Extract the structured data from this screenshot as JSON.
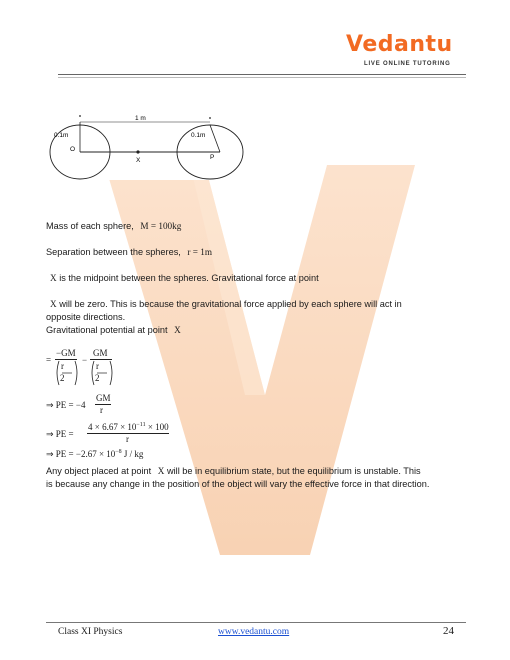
{
  "logo": {
    "name": "Vedantu",
    "tagline": "LIVE ONLINE TUTORING"
  },
  "figure": {
    "distance_label": "1 m",
    "radius_left": "0.1m",
    "radius_right": "0.1m",
    "point_o": "O",
    "point_x": "X",
    "point_p": "P"
  },
  "body": {
    "mass_text": "Mass of each sphere,",
    "mass_eq": "M = 100kg",
    "sep_text": "Separation between the spheres,",
    "sep_eq": "r = 1m",
    "line3_x": "X",
    "line3_rest": " is the midpoint between the spheres. Gravitational force at point",
    "line4_x": "X",
    "line4_rest": " will be zero. This is because the gravitational force applied by each sphere will act in",
    "line5": "opposite directions.",
    "line6": "Gravitational potential at point",
    "line6_x": "X",
    "eq1_num_left": "−GM",
    "eq1_num_right": "GM",
    "eq1_den": "r",
    "eq1_den2": "2",
    "eq2_lhs": "⇒ PE = −4",
    "eq2_num": "GM",
    "eq2_den": "r",
    "eq3_lhs": "⇒ PE =",
    "eq3_num": "4 × 6.67 × 10",
    "eq3_exp": "−11",
    "eq3_num_end": " × 100",
    "eq3_den": "r",
    "eq4_lhs": "⇒ PE = −2.67 × 10",
    "eq4_exp": "−8",
    "eq4_end": " J / kg",
    "conclusion_1_pre": "Any object placed at point",
    "conclusion_1_x": "X",
    "conclusion_1_post": " will be in equilibrium state, but the equilibrium is unstable. This",
    "conclusion_2": "is because any change in the position of the object will vary the effective force in that direction."
  },
  "footer": {
    "left": "Class XI Physics",
    "center": "www.vedantu.com",
    "page": "24"
  },
  "colors": {
    "brand": "#f26a22",
    "watermark": "#f7c9a6",
    "link": "#1a4fd1"
  }
}
